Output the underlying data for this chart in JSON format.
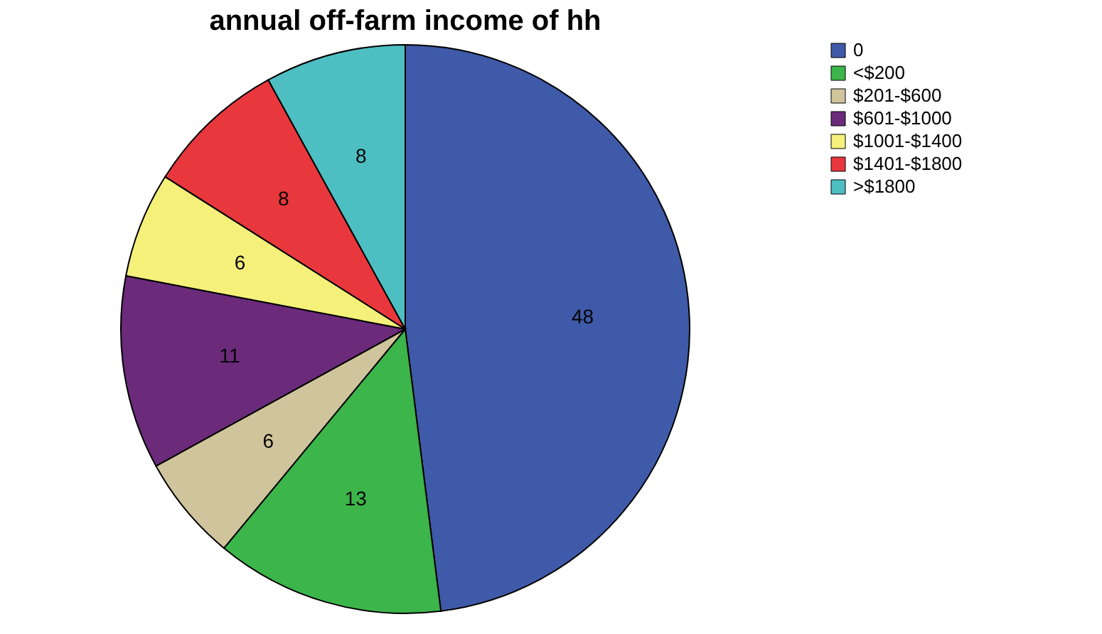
{
  "chart_data": {
    "type": "pie",
    "title": "annual off-farm income of hh",
    "categories": [
      "0",
      "<$200",
      "$201-$600",
      "$601-$1000",
      "$1001-$1400",
      "$1401-$1800",
      ">$1800"
    ],
    "values": [
      48,
      13,
      6,
      11,
      6,
      8,
      8
    ],
    "colors": [
      "#3f5aa8",
      "#3cb54a",
      "#cfc49b",
      "#6b2a7a",
      "#f5f07a",
      "#e8383d",
      "#4dbfc3"
    ],
    "data_labels": true,
    "legend": "top right"
  }
}
